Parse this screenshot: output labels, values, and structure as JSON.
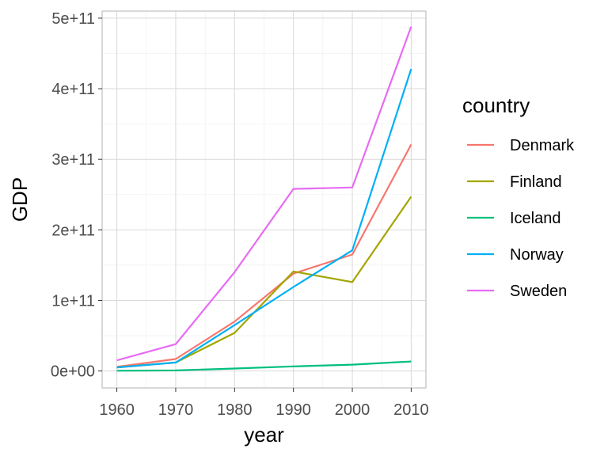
{
  "chart_data": {
    "type": "line",
    "xlabel": "year",
    "ylabel": "GDP",
    "x": [
      1960,
      1970,
      1980,
      1990,
      2000,
      2010
    ],
    "xticks": [
      "1960",
      "1970",
      "1980",
      "1990",
      "2000",
      "2010"
    ],
    "xlim": [
      1957.5,
      2012.5
    ],
    "yticks": [
      0,
      100000000000,
      200000000000,
      300000000000,
      400000000000,
      500000000000
    ],
    "ytick_labels": [
      "0e+00",
      "1e+11",
      "2e+11",
      "3e+11",
      "4e+11",
      "5e+11"
    ],
    "ylim": [
      -24000000000,
      510000000000
    ],
    "grid": true,
    "legend_title": "country",
    "legend_position": "right",
    "series": [
      {
        "name": "Denmark",
        "color": "#F8766D",
        "values": [
          6000000000,
          17000000000,
          70000000000,
          138000000000,
          165000000000,
          321000000000
        ]
      },
      {
        "name": "Finland",
        "color": "#A3A500",
        "values": [
          5000000000,
          12000000000,
          54000000000,
          141000000000,
          126000000000,
          247000000000
        ]
      },
      {
        "name": "Iceland",
        "color": "#00BF7D",
        "values": [
          300000000,
          800000000,
          3500000000,
          6500000000,
          9000000000,
          13500000000
        ]
      },
      {
        "name": "Norway",
        "color": "#00B0F6",
        "values": [
          5000000000,
          12000000000,
          65000000000,
          119000000000,
          171000000000,
          428000000000
        ]
      },
      {
        "name": "Sweden",
        "color": "#E76BF3",
        "values": [
          15000000000,
          38000000000,
          140000000000,
          258000000000,
          260000000000,
          488000000000
        ]
      }
    ]
  }
}
